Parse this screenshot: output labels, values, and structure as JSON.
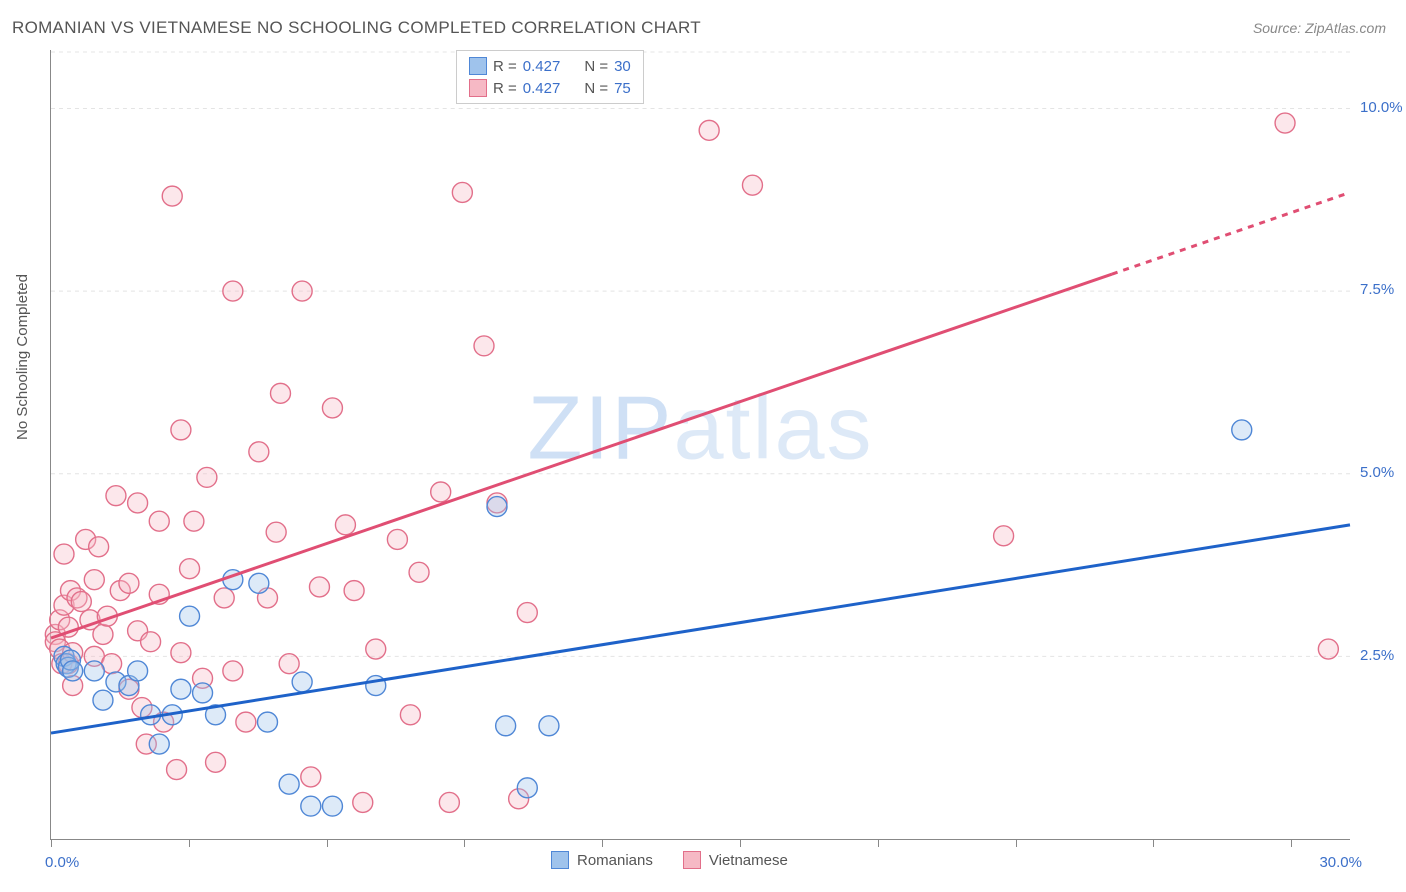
{
  "title": "ROMANIAN VS VIETNAMESE NO SCHOOLING COMPLETED CORRELATION CHART",
  "source": "Source: ZipAtlas.com",
  "ylabel": "No Schooling Completed",
  "watermark_a": "ZIP",
  "watermark_b": "atlas",
  "chart": {
    "type": "scatter",
    "xlim": [
      0,
      30
    ],
    "ylim": [
      0,
      10.8
    ],
    "x_range_label_min": "0.0%",
    "x_range_label_max": "30.0%",
    "xtick_positions": [
      0,
      3.18,
      6.36,
      9.54,
      12.72,
      15.9,
      19.08,
      22.26,
      25.44,
      28.62
    ],
    "yticks": [
      {
        "v": 2.5,
        "label": "2.5%"
      },
      {
        "v": 5.0,
        "label": "5.0%"
      },
      {
        "v": 7.5,
        "label": "7.5%"
      },
      {
        "v": 10.0,
        "label": "10.0%"
      }
    ],
    "grid_color": "#e4e4e4",
    "background_color": "#ffffff",
    "marker_radius": 10,
    "marker_fill_opacity": 0.35,
    "marker_stroke_width": 1.4,
    "series": {
      "romanians": {
        "label": "Romanians",
        "color_fill": "#9fc3ec",
        "color_stroke": "#4f87d6",
        "R": "0.427",
        "N": "30",
        "points": [
          [
            0.3,
            2.5
          ],
          [
            0.35,
            2.4
          ],
          [
            0.4,
            2.35
          ],
          [
            0.45,
            2.45
          ],
          [
            0.5,
            2.3
          ],
          [
            1.0,
            2.3
          ],
          [
            1.2,
            1.9
          ],
          [
            1.5,
            2.15
          ],
          [
            1.8,
            2.1
          ],
          [
            2.0,
            2.3
          ],
          [
            2.3,
            1.7
          ],
          [
            2.5,
            1.3
          ],
          [
            2.8,
            1.7
          ],
          [
            3.0,
            2.05
          ],
          [
            3.2,
            3.05
          ],
          [
            3.5,
            2.0
          ],
          [
            3.8,
            1.7
          ],
          [
            4.2,
            3.55
          ],
          [
            4.8,
            3.5
          ],
          [
            5.0,
            1.6
          ],
          [
            5.5,
            0.75
          ],
          [
            5.8,
            2.15
          ],
          [
            6.0,
            0.45
          ],
          [
            6.5,
            0.45
          ],
          [
            7.5,
            2.1
          ],
          [
            10.3,
            4.55
          ],
          [
            10.5,
            1.55
          ],
          [
            11.0,
            0.7
          ],
          [
            11.5,
            1.55
          ],
          [
            27.5,
            5.6
          ]
        ],
        "trend": {
          "x1": 0,
          "y1": 1.45,
          "x2": 30,
          "y2": 4.3,
          "color": "#1e62c9",
          "width": 3
        }
      },
      "vietnamese": {
        "label": "Vietnamese",
        "color_fill": "#f6b9c5",
        "color_stroke": "#e26f8a",
        "R": "0.427",
        "N": "75",
        "points": [
          [
            0.1,
            2.8
          ],
          [
            0.1,
            2.7
          ],
          [
            0.2,
            3.0
          ],
          [
            0.2,
            2.6
          ],
          [
            0.25,
            2.4
          ],
          [
            0.3,
            3.9
          ],
          [
            0.3,
            3.2
          ],
          [
            0.4,
            2.9
          ],
          [
            0.4,
            2.4
          ],
          [
            0.45,
            3.4
          ],
          [
            0.5,
            2.55
          ],
          [
            0.5,
            2.1
          ],
          [
            0.6,
            3.3
          ],
          [
            0.7,
            3.25
          ],
          [
            0.8,
            4.1
          ],
          [
            0.9,
            3.0
          ],
          [
            1.0,
            2.5
          ],
          [
            1.0,
            3.55
          ],
          [
            1.1,
            4.0
          ],
          [
            1.2,
            2.8
          ],
          [
            1.3,
            3.05
          ],
          [
            1.4,
            2.4
          ],
          [
            1.5,
            4.7
          ],
          [
            1.6,
            3.4
          ],
          [
            1.8,
            2.05
          ],
          [
            1.8,
            3.5
          ],
          [
            2.0,
            4.6
          ],
          [
            2.0,
            2.85
          ],
          [
            2.1,
            1.8
          ],
          [
            2.2,
            1.3
          ],
          [
            2.3,
            2.7
          ],
          [
            2.5,
            4.35
          ],
          [
            2.5,
            3.35
          ],
          [
            2.6,
            1.6
          ],
          [
            2.8,
            8.8
          ],
          [
            2.9,
            0.95
          ],
          [
            3.0,
            2.55
          ],
          [
            3.0,
            5.6
          ],
          [
            3.2,
            3.7
          ],
          [
            3.3,
            4.35
          ],
          [
            3.5,
            2.2
          ],
          [
            3.6,
            4.95
          ],
          [
            3.8,
            1.05
          ],
          [
            4.0,
            3.3
          ],
          [
            4.2,
            7.5
          ],
          [
            4.2,
            2.3
          ],
          [
            4.5,
            1.6
          ],
          [
            4.8,
            5.3
          ],
          [
            5.0,
            3.3
          ],
          [
            5.2,
            4.2
          ],
          [
            5.3,
            6.1
          ],
          [
            5.5,
            2.4
          ],
          [
            5.8,
            7.5
          ],
          [
            6.0,
            0.85
          ],
          [
            6.2,
            3.45
          ],
          [
            6.5,
            5.9
          ],
          [
            6.8,
            4.3
          ],
          [
            7.0,
            3.4
          ],
          [
            7.2,
            0.5
          ],
          [
            7.5,
            2.6
          ],
          [
            8.0,
            4.1
          ],
          [
            8.3,
            1.7
          ],
          [
            8.5,
            3.65
          ],
          [
            9.0,
            4.75
          ],
          [
            9.2,
            0.5
          ],
          [
            9.5,
            8.85
          ],
          [
            10.0,
            6.75
          ],
          [
            10.3,
            4.6
          ],
          [
            10.8,
            0.55
          ],
          [
            11.0,
            3.1
          ],
          [
            15.2,
            9.7
          ],
          [
            16.2,
            8.95
          ],
          [
            22.0,
            4.15
          ],
          [
            28.5,
            9.8
          ],
          [
            29.5,
            2.6
          ]
        ],
        "trend": {
          "x1": 0,
          "y1": 2.75,
          "x2": 30,
          "y2": 8.85,
          "color": "#e04e73",
          "width": 3,
          "dash_from_x": 24.5
        }
      }
    }
  },
  "legend_prefix_R": "R = ",
  "legend_prefix_N": "N = "
}
